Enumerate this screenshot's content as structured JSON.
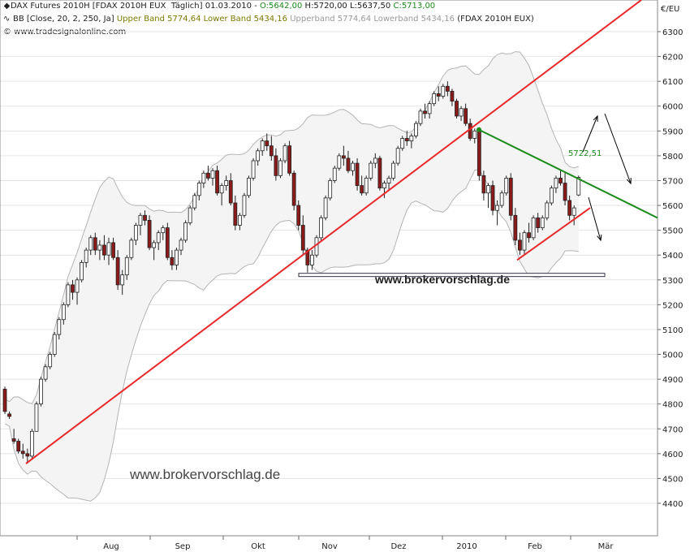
{
  "header": {
    "line1": {
      "symbol": "DAX Futures 2010H [FDAX 2010H EUX  Täglich] 01.03.2010 - ",
      "open": "O:5642,00",
      "high": "H:5720,00",
      "low": "L:5637,50",
      "close": "C:5713,00"
    },
    "line2": {
      "indicator": "BB [Close, 20, 2, 250, Ja]",
      "upper_lower": "Upper Band 5774,64 Lower Band 5434,16",
      "upperband_lowerband": "Upperband 5774,64 Lowerband 5434,16",
      "instrument": "(FDAX 2010H EUX)"
    },
    "line3": "© www.tradesignalonline.com"
  },
  "currency_label": "€/EU",
  "watermark_1": "www.brokervorschlag.de",
  "watermark_2": "www.brokervorschlag.de",
  "colors": {
    "up_candle": "#ffffff",
    "down_candle": "#8b1a1a",
    "band": "#b4b4b4",
    "trend_red": "#e8282a",
    "trend_green": "#1a8a1a",
    "open_text": "#1a8a1a",
    "olive_text": "#7a7a00",
    "grey_text": "#9a9a9a"
  },
  "chart_data": {
    "type": "candlestick",
    "y_axis": {
      "range": [
        4300,
        6400
      ],
      "ticks": [
        4400,
        4500,
        4600,
        4700,
        4800,
        4900,
        5000,
        5100,
        5200,
        5300,
        5400,
        5500,
        5600,
        5700,
        5800,
        5900,
        6000,
        6100,
        6200,
        6300
      ]
    },
    "x_axis": {
      "labels": [
        "Aug",
        "Sep",
        "Okt",
        "Nov",
        "Dez",
        "2010",
        "Feb",
        "Mär"
      ]
    },
    "annotation_value": "5722,51",
    "support_level": 5320,
    "trendlines": [
      {
        "color": "red",
        "from": [
          "Jul 2009",
          4560
        ],
        "to": [
          "Mär 2010",
          6400
        ]
      },
      {
        "color": "green",
        "from": [
          "Jan 2010",
          5905
        ],
        "to": [
          "Mär 2010",
          5550
        ]
      },
      {
        "color": "red",
        "from": [
          "Feb 2010",
          5380
        ],
        "to": [
          "Feb 2010",
          5590
        ]
      }
    ],
    "ohlc": [
      [
        4860,
        4870,
        4760,
        4770
      ],
      [
        4760,
        4770,
        4740,
        4750
      ],
      [
        4660,
        4700,
        4640,
        4650
      ],
      [
        4650,
        4660,
        4600,
        4610
      ],
      [
        4610,
        4640,
        4580,
        4600
      ],
      [
        4600,
        4620,
        4560,
        4590
      ],
      [
        4590,
        4700,
        4580,
        4690
      ],
      [
        4690,
        4810,
        4690,
        4800
      ],
      [
        4800,
        4910,
        4790,
        4900
      ],
      [
        4900,
        4960,
        4890,
        4950
      ],
      [
        4950,
        5010,
        4940,
        5000
      ],
      [
        5000,
        5090,
        4990,
        5080
      ],
      [
        5080,
        5150,
        5060,
        5140
      ],
      [
        5140,
        5210,
        5120,
        5200
      ],
      [
        5200,
        5290,
        5190,
        5280
      ],
      [
        5280,
        5300,
        5220,
        5250
      ],
      [
        5250,
        5310,
        5200,
        5300
      ],
      [
        5300,
        5380,
        5290,
        5370
      ],
      [
        5370,
        5430,
        5350,
        5420
      ],
      [
        5420,
        5480,
        5400,
        5470
      ],
      [
        5470,
        5490,
        5400,
        5420
      ],
      [
        5420,
        5460,
        5380,
        5440
      ],
      [
        5440,
        5480,
        5380,
        5400
      ],
      [
        5400,
        5470,
        5360,
        5450
      ],
      [
        5450,
        5470,
        5380,
        5390
      ],
      [
        5390,
        5420,
        5260,
        5280
      ],
      [
        5280,
        5340,
        5240,
        5320
      ],
      [
        5320,
        5400,
        5300,
        5390
      ],
      [
        5390,
        5470,
        5380,
        5460
      ],
      [
        5460,
        5530,
        5440,
        5520
      ],
      [
        5520,
        5570,
        5480,
        5560
      ],
      [
        5560,
        5580,
        5520,
        5540
      ],
      [
        5540,
        5560,
        5420,
        5430
      ],
      [
        5430,
        5460,
        5380,
        5450
      ],
      [
        5450,
        5500,
        5420,
        5490
      ],
      [
        5490,
        5520,
        5460,
        5510
      ],
      [
        5510,
        5530,
        5380,
        5390
      ],
      [
        5390,
        5420,
        5340,
        5360
      ],
      [
        5360,
        5430,
        5340,
        5420
      ],
      [
        5420,
        5470,
        5400,
        5460
      ],
      [
        5460,
        5540,
        5450,
        5530
      ],
      [
        5530,
        5600,
        5520,
        5590
      ],
      [
        5590,
        5650,
        5580,
        5640
      ],
      [
        5640,
        5700,
        5620,
        5690
      ],
      [
        5690,
        5740,
        5670,
        5730
      ],
      [
        5730,
        5760,
        5700,
        5710
      ],
      [
        5710,
        5750,
        5680,
        5740
      ],
      [
        5740,
        5760,
        5640,
        5650
      ],
      [
        5650,
        5690,
        5600,
        5680
      ],
      [
        5680,
        5720,
        5660,
        5700
      ],
      [
        5700,
        5730,
        5600,
        5610
      ],
      [
        5610,
        5640,
        5500,
        5520
      ],
      [
        5520,
        5570,
        5500,
        5560
      ],
      [
        5560,
        5650,
        5550,
        5640
      ],
      [
        5640,
        5720,
        5630,
        5710
      ],
      [
        5710,
        5790,
        5700,
        5780
      ],
      [
        5780,
        5830,
        5760,
        5820
      ],
      [
        5820,
        5870,
        5800,
        5860
      ],
      [
        5860,
        5890,
        5820,
        5840
      ],
      [
        5840,
        5880,
        5780,
        5800
      ],
      [
        5800,
        5830,
        5700,
        5720
      ],
      [
        5720,
        5790,
        5710,
        5780
      ],
      [
        5780,
        5850,
        5770,
        5840
      ],
      [
        5840,
        5860,
        5720,
        5730
      ],
      [
        5730,
        5740,
        5580,
        5600
      ],
      [
        5600,
        5620,
        5500,
        5520
      ],
      [
        5520,
        5560,
        5400,
        5420
      ],
      [
        5420,
        5430,
        5330,
        5360
      ],
      [
        5360,
        5420,
        5340,
        5400
      ],
      [
        5400,
        5480,
        5390,
        5470
      ],
      [
        5470,
        5560,
        5460,
        5550
      ],
      [
        5550,
        5640,
        5540,
        5630
      ],
      [
        5630,
        5710,
        5620,
        5700
      ],
      [
        5700,
        5760,
        5690,
        5750
      ],
      [
        5750,
        5810,
        5740,
        5800
      ],
      [
        5800,
        5840,
        5760,
        5790
      ],
      [
        5790,
        5820,
        5730,
        5740
      ],
      [
        5740,
        5780,
        5720,
        5770
      ],
      [
        5770,
        5790,
        5660,
        5680
      ],
      [
        5680,
        5720,
        5640,
        5650
      ],
      [
        5650,
        5720,
        5640,
        5710
      ],
      [
        5710,
        5780,
        5700,
        5770
      ],
      [
        5770,
        5810,
        5750,
        5790
      ],
      [
        5790,
        5800,
        5660,
        5670
      ],
      [
        5670,
        5700,
        5630,
        5690
      ],
      [
        5690,
        5720,
        5660,
        5710
      ],
      [
        5710,
        5780,
        5700,
        5770
      ],
      [
        5770,
        5840,
        5760,
        5830
      ],
      [
        5830,
        5880,
        5820,
        5870
      ],
      [
        5870,
        5900,
        5840,
        5860
      ],
      [
        5860,
        5890,
        5830,
        5880
      ],
      [
        5880,
        5940,
        5870,
        5930
      ],
      [
        5930,
        5990,
        5920,
        5980
      ],
      [
        5980,
        6010,
        5950,
        5970
      ],
      [
        5970,
        6020,
        5950,
        6010
      ],
      [
        6010,
        6060,
        6000,
        6050
      ],
      [
        6050,
        6080,
        6020,
        6040
      ],
      [
        6040,
        6090,
        6030,
        6080
      ],
      [
        6080,
        6100,
        6040,
        6060
      ],
      [
        6060,
        6070,
        6000,
        6020
      ],
      [
        6020,
        6030,
        5950,
        5960
      ],
      [
        5960,
        6000,
        5940,
        5990
      ],
      [
        5990,
        6010,
        5920,
        5930
      ],
      [
        5930,
        5950,
        5860,
        5870
      ],
      [
        5870,
        5910,
        5850,
        5900
      ],
      [
        5900,
        5910,
        5700,
        5720
      ],
      [
        5720,
        5740,
        5620,
        5650
      ],
      [
        5650,
        5690,
        5590,
        5680
      ],
      [
        5680,
        5700,
        5560,
        5580
      ],
      [
        5580,
        5620,
        5520,
        5600
      ],
      [
        5600,
        5660,
        5590,
        5650
      ],
      [
        5650,
        5720,
        5640,
        5710
      ],
      [
        5710,
        5730,
        5540,
        5560
      ],
      [
        5560,
        5590,
        5440,
        5460
      ],
      [
        5460,
        5490,
        5400,
        5420
      ],
      [
        5420,
        5500,
        5400,
        5490
      ],
      [
        5490,
        5530,
        5450,
        5470
      ],
      [
        5470,
        5560,
        5460,
        5550
      ],
      [
        5550,
        5570,
        5490,
        5510
      ],
      [
        5510,
        5560,
        5500,
        5550
      ],
      [
        5550,
        5620,
        5540,
        5610
      ],
      [
        5610,
        5680,
        5600,
        5670
      ],
      [
        5670,
        5720,
        5650,
        5710
      ],
      [
        5710,
        5740,
        5680,
        5690
      ],
      [
        5690,
        5730,
        5600,
        5620
      ],
      [
        5620,
        5640,
        5540,
        5560
      ],
      [
        5560,
        5600,
        5520,
        5590
      ],
      [
        5642,
        5720,
        5637.5,
        5713
      ]
    ]
  }
}
